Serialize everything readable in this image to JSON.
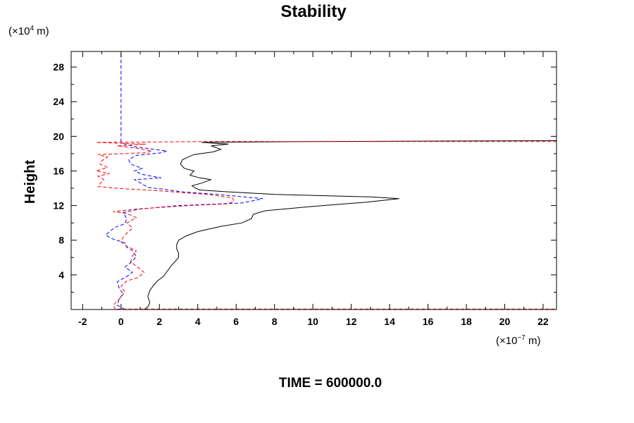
{
  "chart_data": {
    "type": "line",
    "title": "Stability",
    "ylabel": "Height",
    "y_unit": {
      "prefix": "(×10",
      "exp": "4",
      "suffix": " m)"
    },
    "x_unit": {
      "prefix": "(×10",
      "exp": "−7",
      "suffix": " m)"
    },
    "xlim": [
      -2.6,
      22.7
    ],
    "ylim": [
      0.0,
      29.8
    ],
    "xticks": [
      -2,
      0,
      2,
      4,
      6,
      8,
      10,
      12,
      14,
      16,
      18,
      20,
      22
    ],
    "yticks": [
      4,
      8,
      12,
      16,
      20,
      24,
      28
    ],
    "grid": false,
    "series": [
      {
        "color": "#000000",
        "dash": "solid",
        "points": [
          [
            1.2,
            0.0
          ],
          [
            1.4,
            0.3
          ],
          [
            1.5,
            0.8
          ],
          [
            1.4,
            1.5
          ],
          [
            1.5,
            2.2
          ],
          [
            1.7,
            2.8
          ],
          [
            1.9,
            3.3
          ],
          [
            2.2,
            3.8
          ],
          [
            2.4,
            4.4
          ],
          [
            2.6,
            5.0
          ],
          [
            2.8,
            5.5
          ],
          [
            3.0,
            6.0
          ],
          [
            3.0,
            6.5
          ],
          [
            2.9,
            7.0
          ],
          [
            2.9,
            7.5
          ],
          [
            3.0,
            8.0
          ],
          [
            3.4,
            8.5
          ],
          [
            4.0,
            9.0
          ],
          [
            5.2,
            9.6
          ],
          [
            6.3,
            10.0
          ],
          [
            6.8,
            10.5
          ],
          [
            6.9,
            11.0
          ],
          [
            7.5,
            11.4
          ],
          [
            10.0,
            11.9
          ],
          [
            12.8,
            12.4
          ],
          [
            14.5,
            12.8
          ],
          [
            13.0,
            13.0
          ],
          [
            8.0,
            13.3
          ],
          [
            5.5,
            13.6
          ],
          [
            4.1,
            13.8
          ],
          [
            3.9,
            14.0
          ],
          [
            3.7,
            14.3
          ],
          [
            4.2,
            14.6
          ],
          [
            4.7,
            15.0
          ],
          [
            4.1,
            15.2
          ],
          [
            3.6,
            15.5
          ],
          [
            3.8,
            16.0
          ],
          [
            3.3,
            16.3
          ],
          [
            3.1,
            16.8
          ],
          [
            3.2,
            17.3
          ],
          [
            3.5,
            17.6
          ],
          [
            3.8,
            17.9
          ],
          [
            4.8,
            18.2
          ],
          [
            5.2,
            18.5
          ],
          [
            4.7,
            18.9
          ],
          [
            5.6,
            19.1
          ],
          [
            4.2,
            19.3
          ],
          [
            10.0,
            19.4
          ],
          [
            22.7,
            19.5
          ]
        ]
      },
      {
        "color": "#0000ff",
        "dash": "dashed",
        "points": [
          [
            0.2,
            0.0
          ],
          [
            -0.2,
            0.5
          ],
          [
            -0.1,
            1.2
          ],
          [
            0.1,
            1.8
          ],
          [
            -0.1,
            2.5
          ],
          [
            -0.2,
            3.2
          ],
          [
            0.3,
            3.8
          ],
          [
            0.6,
            4.3
          ],
          [
            0.2,
            4.9
          ],
          [
            0.5,
            5.4
          ],
          [
            0.8,
            6.1
          ],
          [
            0.6,
            6.8
          ],
          [
            0.3,
            7.2
          ],
          [
            0.2,
            7.7
          ],
          [
            -0.5,
            8.2
          ],
          [
            -0.8,
            8.6
          ],
          [
            -0.6,
            9.0
          ],
          [
            -0.3,
            9.5
          ],
          [
            0.2,
            9.9
          ],
          [
            0.3,
            10.5
          ],
          [
            0.1,
            11.2
          ],
          [
            1.0,
            11.6
          ],
          [
            3.0,
            12.0
          ],
          [
            6.3,
            12.3
          ],
          [
            7.4,
            12.8
          ],
          [
            5.0,
            13.3
          ],
          [
            3.1,
            13.6
          ],
          [
            2.2,
            13.9
          ],
          [
            1.4,
            14.1
          ],
          [
            1.1,
            14.5
          ],
          [
            0.7,
            15.0
          ],
          [
            2.1,
            15.2
          ],
          [
            1.1,
            15.6
          ],
          [
            0.7,
            16.0
          ],
          [
            1.1,
            16.3
          ],
          [
            0.5,
            16.8
          ],
          [
            0.4,
            17.3
          ],
          [
            0.8,
            17.8
          ],
          [
            2.1,
            18.1
          ],
          [
            2.4,
            18.3
          ],
          [
            1.7,
            18.5
          ],
          [
            0.7,
            18.8
          ],
          [
            0.2,
            19.1
          ],
          [
            0.0,
            19.4
          ],
          [
            0.0,
            22.0
          ],
          [
            0.0,
            25.0
          ],
          [
            0.0,
            29.8
          ]
        ]
      },
      {
        "color": "#ff0000",
        "dash": "dashed",
        "points": [
          [
            -0.3,
            0.0
          ],
          [
            -0.4,
            0.5
          ],
          [
            -0.1,
            1.2
          ],
          [
            0.2,
            2.0
          ],
          [
            0.0,
            2.7
          ],
          [
            0.3,
            3.3
          ],
          [
            0.9,
            3.7
          ],
          [
            1.2,
            4.3
          ],
          [
            0.8,
            5.0
          ],
          [
            0.5,
            5.5
          ],
          [
            0.6,
            6.2
          ],
          [
            0.8,
            6.8
          ],
          [
            0.3,
            7.3
          ],
          [
            0.0,
            7.8
          ],
          [
            0.1,
            8.3
          ],
          [
            0.3,
            8.8
          ],
          [
            0.6,
            9.4
          ],
          [
            0.3,
            10.0
          ],
          [
            0.8,
            10.6
          ],
          [
            0.3,
            11.1
          ],
          [
            -0.4,
            11.3
          ],
          [
            0.8,
            11.6
          ],
          [
            3.5,
            12.0
          ],
          [
            5.5,
            12.2
          ],
          [
            5.9,
            12.5
          ],
          [
            5.8,
            12.9
          ],
          [
            4.5,
            13.3
          ],
          [
            2.0,
            13.7
          ],
          [
            -0.2,
            14.0
          ],
          [
            -1.2,
            14.2
          ],
          [
            -1.1,
            14.5
          ],
          [
            -0.9,
            15.0
          ],
          [
            -1.2,
            15.4
          ],
          [
            -0.6,
            15.7
          ],
          [
            -1.3,
            16.0
          ],
          [
            -0.7,
            16.4
          ],
          [
            -1.1,
            16.8
          ],
          [
            -1.0,
            17.2
          ],
          [
            -0.7,
            17.6
          ],
          [
            -1.2,
            17.9
          ],
          [
            1.3,
            18.1
          ],
          [
            1.6,
            18.3
          ],
          [
            0.9,
            18.6
          ],
          [
            -0.2,
            18.9
          ],
          [
            1.3,
            19.1
          ],
          [
            -1.3,
            19.3
          ],
          [
            5.0,
            19.4
          ],
          [
            22.7,
            19.4
          ]
        ]
      },
      {
        "color": "#ff0000",
        "dash": "dashed",
        "points": [
          [
            -0.2,
            0.05
          ],
          [
            22.7,
            0.05
          ]
        ]
      }
    ]
  },
  "footer": {
    "time_label": "TIME = 600000.0"
  }
}
